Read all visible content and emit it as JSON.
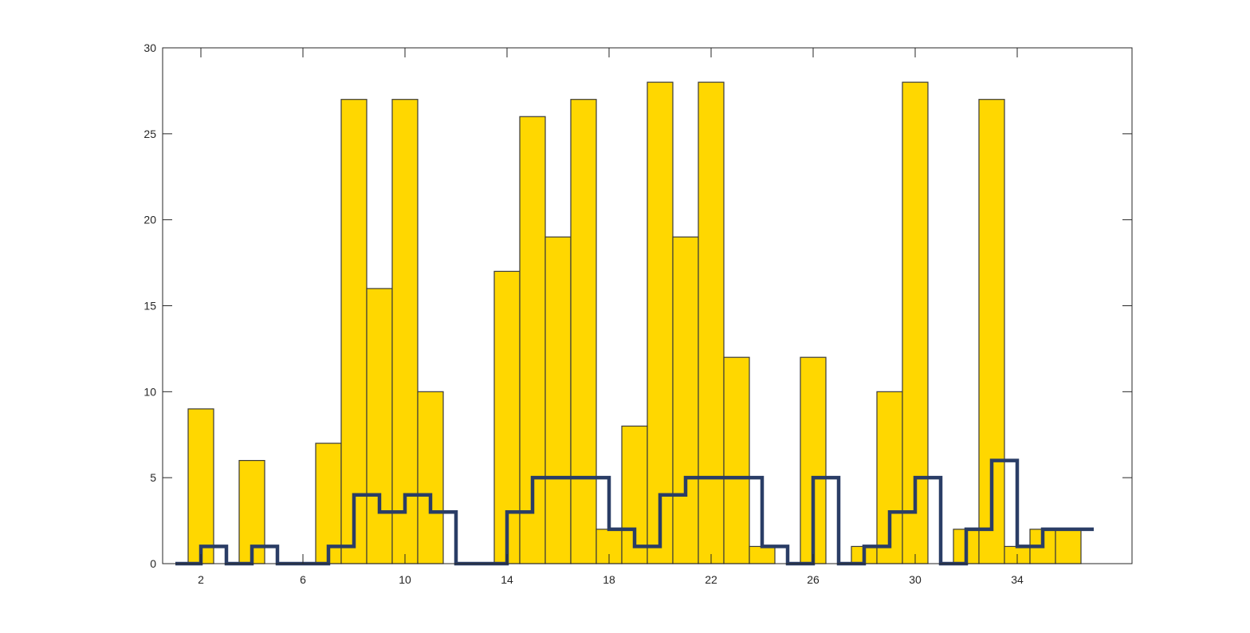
{
  "chart_data": {
    "type": "bar",
    "title": "",
    "xlabel": "",
    "ylabel": "",
    "xlim": [
      0.5,
      38.5
    ],
    "ylim": [
      0,
      30
    ],
    "grid": false,
    "xticks": [
      2,
      6,
      10,
      14,
      18,
      22,
      26,
      30,
      34
    ],
    "yticks": [
      0,
      5,
      10,
      15,
      20,
      25,
      30
    ],
    "x": [
      1,
      2,
      3,
      4,
      5,
      6,
      7,
      8,
      9,
      10,
      11,
      12,
      13,
      14,
      15,
      16,
      17,
      18,
      19,
      20,
      21,
      22,
      23,
      24,
      25,
      26,
      27,
      28,
      29,
      30,
      31,
      32,
      33,
      34,
      35,
      36
    ],
    "series": [
      {
        "type": "bar",
        "color": "#FFD700",
        "edge_color": "#3a3a3a",
        "values": [
          0,
          9,
          0,
          6,
          0,
          0,
          7,
          27,
          16,
          27,
          10,
          0,
          0,
          17,
          26,
          19,
          27,
          2,
          8,
          28,
          19,
          28,
          12,
          1,
          0,
          12,
          0,
          1,
          10,
          28,
          0,
          2,
          27,
          1,
          2,
          2
        ]
      },
      {
        "type": "stairs",
        "color": "#2a3d66",
        "values": [
          0,
          1,
          0,
          1,
          0,
          0,
          1,
          4,
          3,
          4,
          3,
          0,
          0,
          3,
          5,
          5,
          5,
          2,
          1,
          4,
          5,
          5,
          5,
          1,
          0,
          5,
          0,
          1,
          3,
          5,
          0,
          2,
          6,
          1,
          2,
          2
        ]
      }
    ]
  }
}
